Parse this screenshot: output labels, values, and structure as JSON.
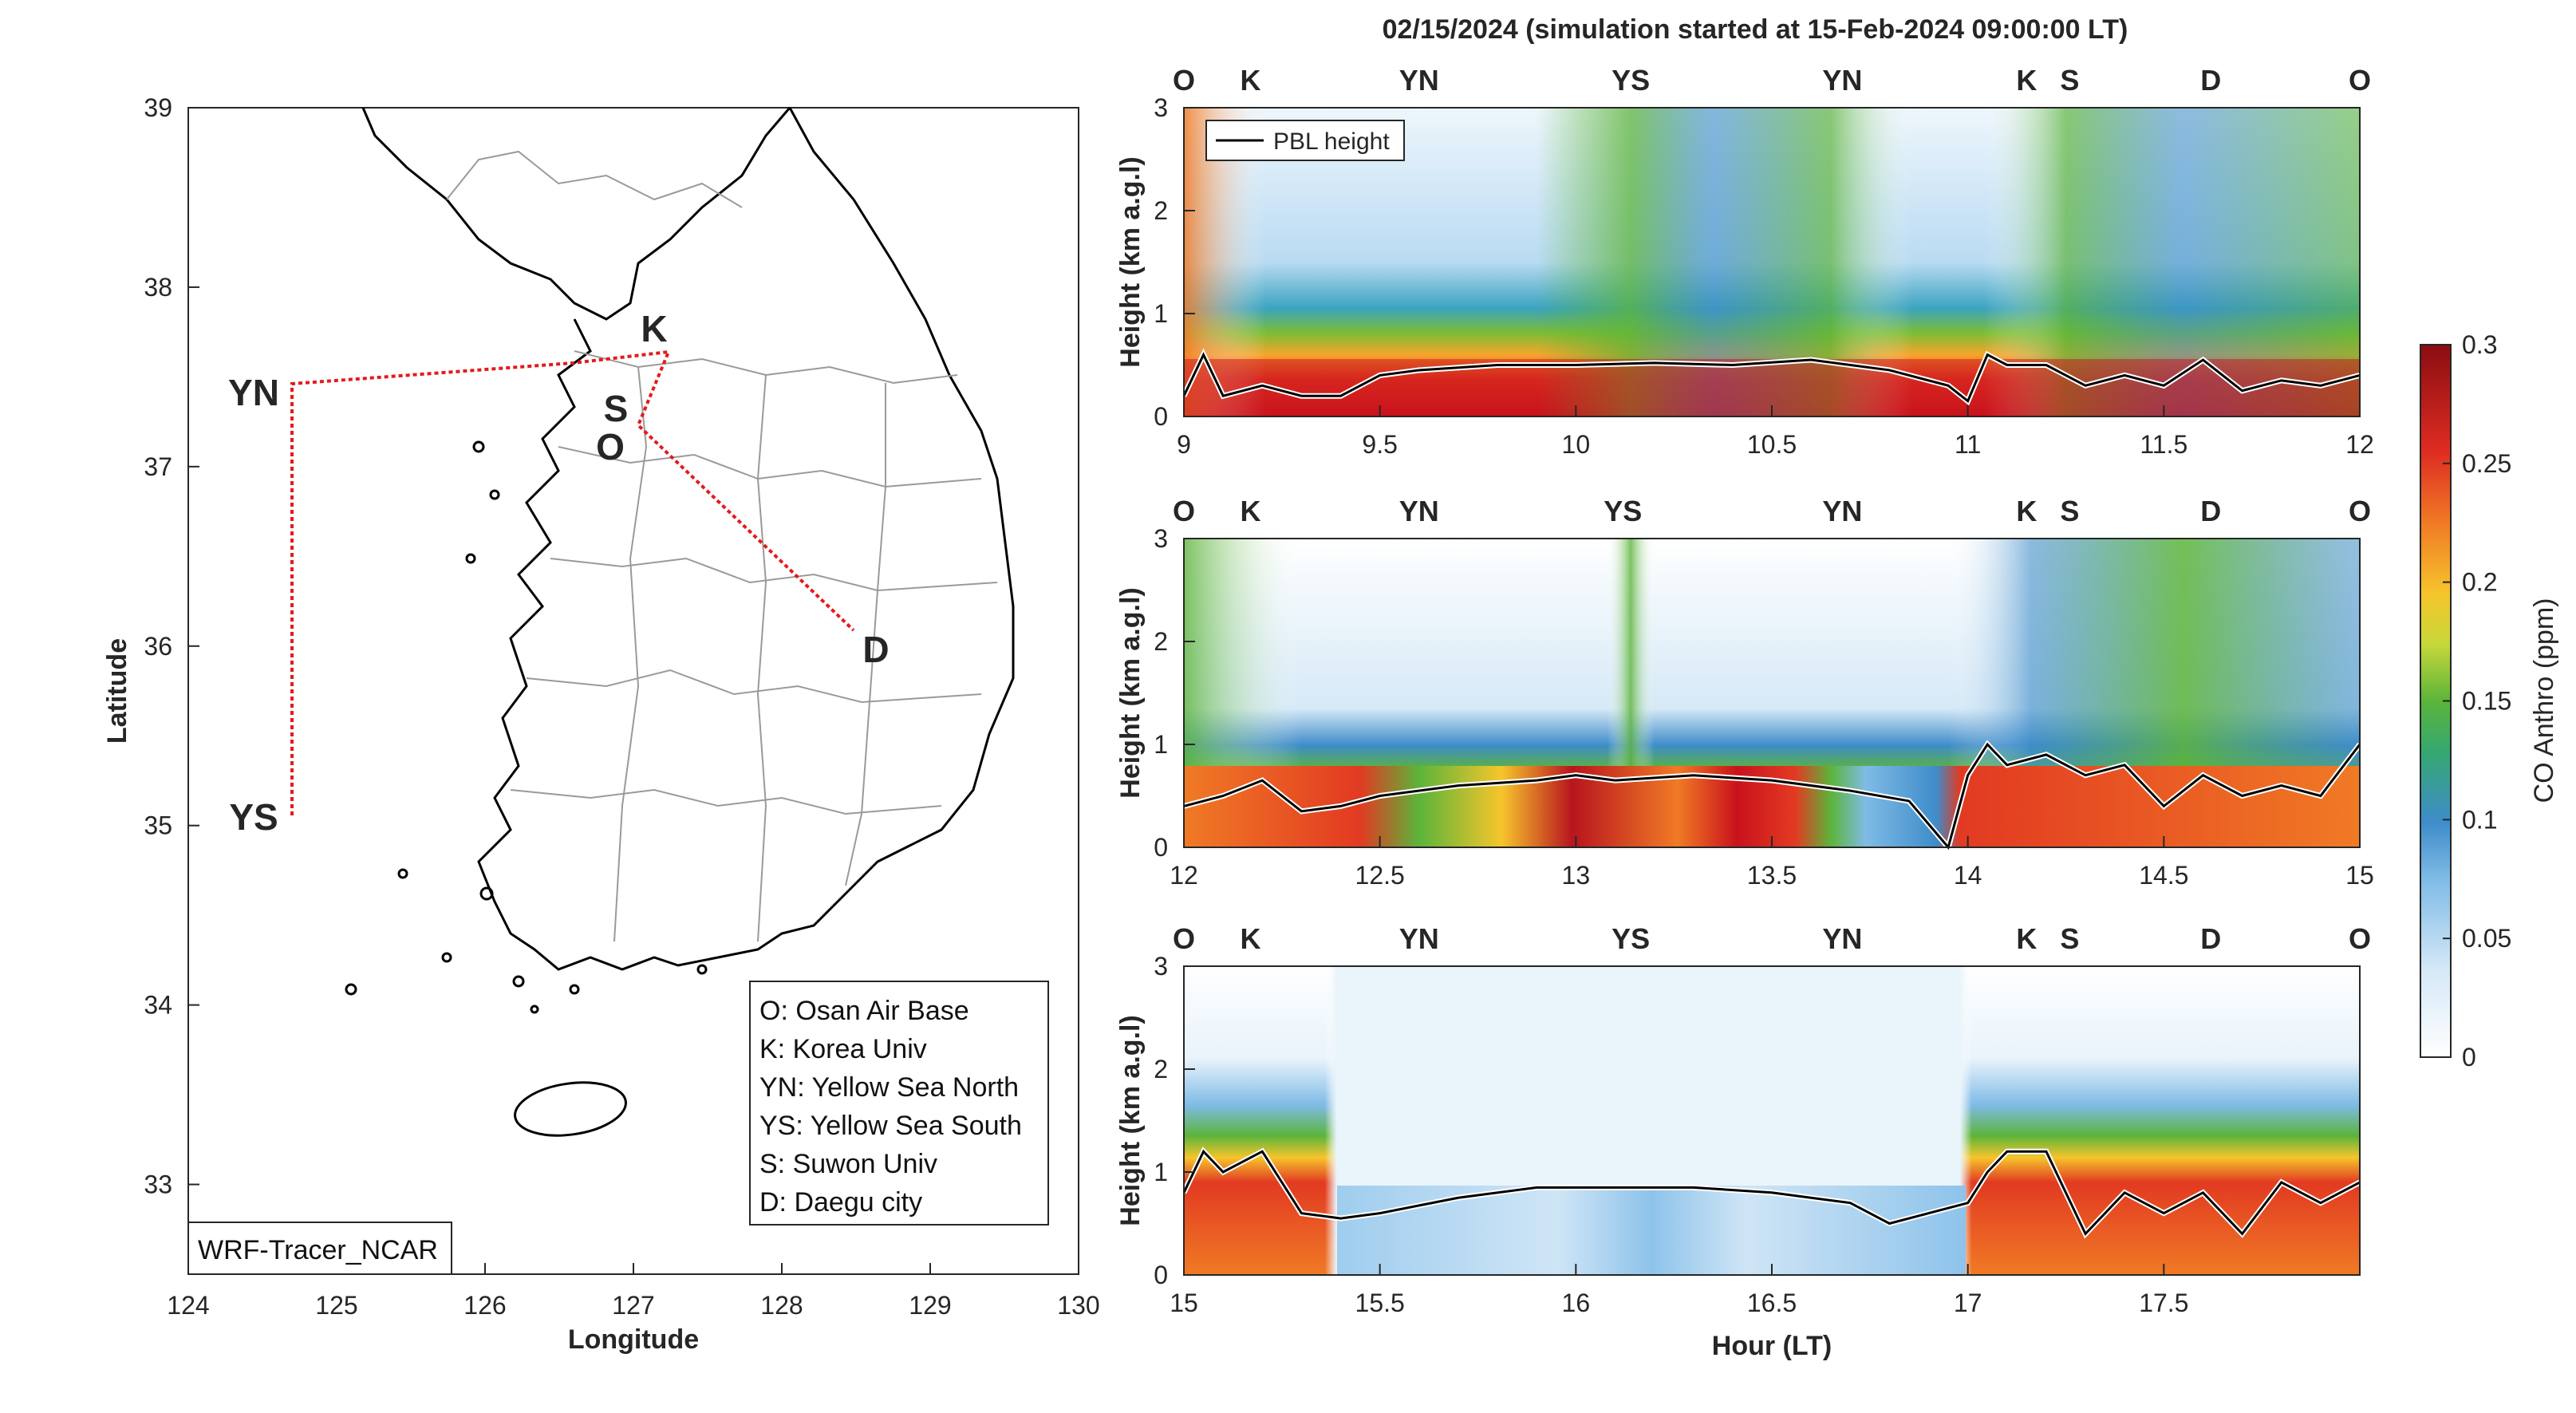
{
  "title": "02/15/2024 (simulation started at 15-Feb-2024 09:00:00 LT)",
  "colors": {
    "O": "#000000",
    "K": "#4DB8E8",
    "YN": "#6BAE2A",
    "YS": "#F0B41C",
    "S": "#7B3294",
    "D": "#E0601B",
    "route": "#E41A1C"
  },
  "map": {
    "xlabel": "Longitude",
    "ylabel": "Latitude",
    "xticks": [
      "124",
      "125",
      "126",
      "127",
      "128",
      "129",
      "130"
    ],
    "yticks": [
      "33",
      "34",
      "35",
      "36",
      "37",
      "38",
      "39"
    ],
    "xlim": [
      124,
      130
    ],
    "ylim": [
      32.5,
      39
    ],
    "watermark": "WRF-Tracer_NCAR",
    "sites": [
      {
        "id": "O",
        "label": "O",
        "lon": 126.83,
        "lat": 37.09
      },
      {
        "id": "K",
        "label": "K",
        "lon": 127.11,
        "lat": 37.59
      },
      {
        "id": "S",
        "label": "S",
        "lon": 126.88,
        "lat": 37.3
      },
      {
        "id": "YN",
        "label": "YN",
        "lon": 124.7,
        "lat": 37.45
      },
      {
        "id": "YS",
        "label": "YS",
        "lon": 124.7,
        "lat": 35.05
      },
      {
        "id": "D",
        "label": "D",
        "lon": 128.5,
        "lat": 36.05
      }
    ],
    "legend": [
      "O: Osan Air Base",
      "K: Korea Univ",
      "YN: Yellow Sea North",
      "YS: Yellow Sea South",
      "S: Suwon Univ",
      "D: Daegu city"
    ]
  },
  "colorbar": {
    "label": "CO Anthro (ppm)",
    "ticks": [
      "0",
      "0.05",
      "0.1",
      "0.15",
      "0.2",
      "0.25",
      "0.3"
    ],
    "range": [
      0,
      0.3
    ]
  },
  "chart_data": [
    {
      "type": "heatmap",
      "ylabel": "Height (km a.g.l)",
      "xticks": [
        "9",
        "9.5",
        "10",
        "10.5",
        "11",
        "11.5",
        "12"
      ],
      "xlim": [
        9,
        12
      ],
      "ylim": [
        0,
        3
      ],
      "yticks": [
        "0",
        "1",
        "2",
        "3"
      ],
      "sites": [
        {
          "label": "O",
          "x": 9.0
        },
        {
          "label": "K",
          "x": 9.17
        },
        {
          "label": "YN",
          "x": 9.6
        },
        {
          "label": "YS",
          "x": 10.14
        },
        {
          "label": "YN",
          "x": 10.68
        },
        {
          "label": "K",
          "x": 11.15
        },
        {
          "label": "S",
          "x": 11.26
        },
        {
          "label": "D",
          "x": 11.62
        },
        {
          "label": "O",
          "x": 12.0
        }
      ],
      "series": [
        {
          "name": "PBL height",
          "x": [
            9.0,
            9.05,
            9.1,
            9.2,
            9.3,
            9.4,
            9.5,
            9.6,
            9.8,
            10.0,
            10.2,
            10.4,
            10.6,
            10.8,
            10.95,
            11.0,
            11.05,
            11.1,
            11.2,
            11.3,
            11.4,
            11.5,
            11.6,
            11.7,
            11.8,
            11.9,
            12.0
          ],
          "y": [
            0.2,
            0.6,
            0.2,
            0.3,
            0.2,
            0.2,
            0.4,
            0.45,
            0.5,
            0.5,
            0.52,
            0.5,
            0.55,
            0.45,
            0.3,
            0.15,
            0.6,
            0.5,
            0.5,
            0.3,
            0.4,
            0.3,
            0.55,
            0.25,
            0.35,
            0.3,
            0.4
          ]
        }
      ],
      "show_legend": true,
      "legend_label": "PBL height"
    },
    {
      "type": "heatmap",
      "ylabel": "Height (km a.g.l)",
      "xticks": [
        "12",
        "12.5",
        "13",
        "13.5",
        "14",
        "14.5",
        "15"
      ],
      "xlim": [
        12,
        15
      ],
      "ylim": [
        0,
        3
      ],
      "yticks": [
        "0",
        "1",
        "2",
        "3"
      ],
      "sites": [
        {
          "label": "O",
          "x": 12.0
        },
        {
          "label": "K",
          "x": 12.17
        },
        {
          "label": "YN",
          "x": 12.6
        },
        {
          "label": "YS",
          "x": 13.12
        },
        {
          "label": "YN",
          "x": 13.68
        },
        {
          "label": "K",
          "x": 14.15
        },
        {
          "label": "S",
          "x": 14.26
        },
        {
          "label": "D",
          "x": 14.62
        },
        {
          "label": "O",
          "x": 15.0
        }
      ],
      "series": [
        {
          "name": "PBL height",
          "x": [
            12.0,
            12.1,
            12.2,
            12.3,
            12.4,
            12.5,
            12.7,
            12.9,
            13.0,
            13.1,
            13.3,
            13.5,
            13.7,
            13.85,
            13.95,
            14.0,
            14.05,
            14.1,
            14.2,
            14.3,
            14.4,
            14.5,
            14.6,
            14.7,
            14.8,
            14.9,
            15.0
          ],
          "y": [
            0.4,
            0.5,
            0.65,
            0.35,
            0.4,
            0.5,
            0.6,
            0.65,
            0.7,
            0.65,
            0.7,
            0.65,
            0.55,
            0.45,
            0.0,
            0.7,
            1.0,
            0.8,
            0.9,
            0.7,
            0.8,
            0.4,
            0.7,
            0.5,
            0.6,
            0.5,
            1.0
          ]
        }
      ],
      "show_legend": false
    },
    {
      "type": "heatmap",
      "ylabel": "Height (km a.g.l)",
      "xlabel": "Hour (LT)",
      "xticks": [
        "15",
        "15.5",
        "16",
        "16.5",
        "17",
        "17.5"
      ],
      "xlim": [
        15,
        18
      ],
      "ylim": [
        0,
        3
      ],
      "yticks": [
        "0",
        "1",
        "2",
        "3"
      ],
      "sites": [
        {
          "label": "O",
          "x": 15.0
        },
        {
          "label": "K",
          "x": 15.17
        },
        {
          "label": "YN",
          "x": 15.6
        },
        {
          "label": "YS",
          "x": 16.14
        },
        {
          "label": "YN",
          "x": 16.68
        },
        {
          "label": "K",
          "x": 17.15
        },
        {
          "label": "S",
          "x": 17.26
        },
        {
          "label": "D",
          "x": 17.62
        },
        {
          "label": "O",
          "x": 18.0
        }
      ],
      "series": [
        {
          "name": "PBL height",
          "x": [
            15.0,
            15.05,
            15.1,
            15.2,
            15.3,
            15.4,
            15.5,
            15.7,
            15.9,
            16.1,
            16.3,
            16.5,
            16.7,
            16.8,
            16.9,
            17.0,
            17.05,
            17.1,
            17.2,
            17.3,
            17.4,
            17.5,
            17.6,
            17.7,
            17.8,
            17.9,
            18.0
          ],
          "y": [
            0.8,
            1.2,
            1.0,
            1.2,
            0.6,
            0.55,
            0.6,
            0.75,
            0.85,
            0.85,
            0.85,
            0.8,
            0.7,
            0.5,
            0.6,
            0.7,
            1.0,
            1.2,
            1.2,
            0.4,
            0.8,
            0.6,
            0.8,
            0.4,
            0.9,
            0.7,
            0.9
          ]
        }
      ],
      "show_legend": false
    }
  ]
}
